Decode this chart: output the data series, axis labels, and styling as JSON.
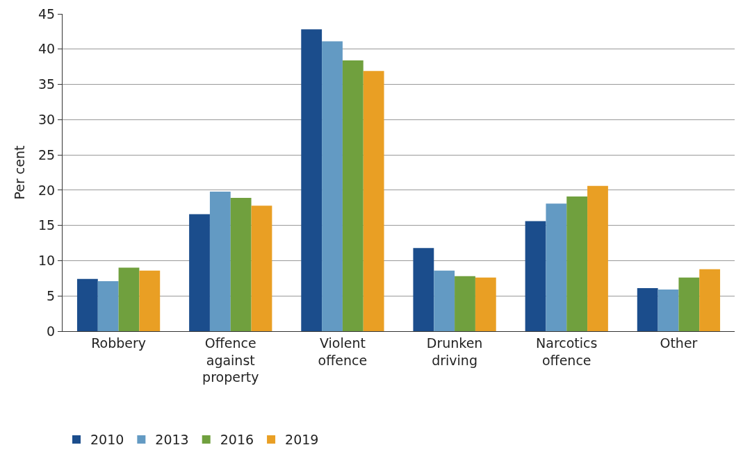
{
  "chart_data": {
    "type": "bar",
    "ylabel": "Per cent",
    "categories": [
      "Robbery",
      "Offence\nagainst\nproperty",
      "Violent\noffence",
      "Drunken\ndriving",
      "Narcotics\noffence",
      "Other"
    ],
    "series": [
      {
        "name": "2010",
        "color": "#1b4d8c",
        "values": [
          7.4,
          16.6,
          42.8,
          11.8,
          15.6,
          6.1
        ]
      },
      {
        "name": "2013",
        "color": "#639ac3",
        "values": [
          7.1,
          19.8,
          41.1,
          8.6,
          18.1,
          5.9
        ]
      },
      {
        "name": "2016",
        "color": "#70a03e",
        "values": [
          9.0,
          18.9,
          38.4,
          7.8,
          19.1,
          7.6
        ]
      },
      {
        "name": "2019",
        "color": "#e99f24",
        "values": [
          8.6,
          17.8,
          36.9,
          7.6,
          20.6,
          8.8
        ]
      }
    ],
    "ylim": [
      0,
      45
    ],
    "yticks": [
      0,
      5,
      10,
      15,
      20,
      25,
      30,
      35,
      40,
      45
    ],
    "grid": "y",
    "legend": "bottom left"
  }
}
